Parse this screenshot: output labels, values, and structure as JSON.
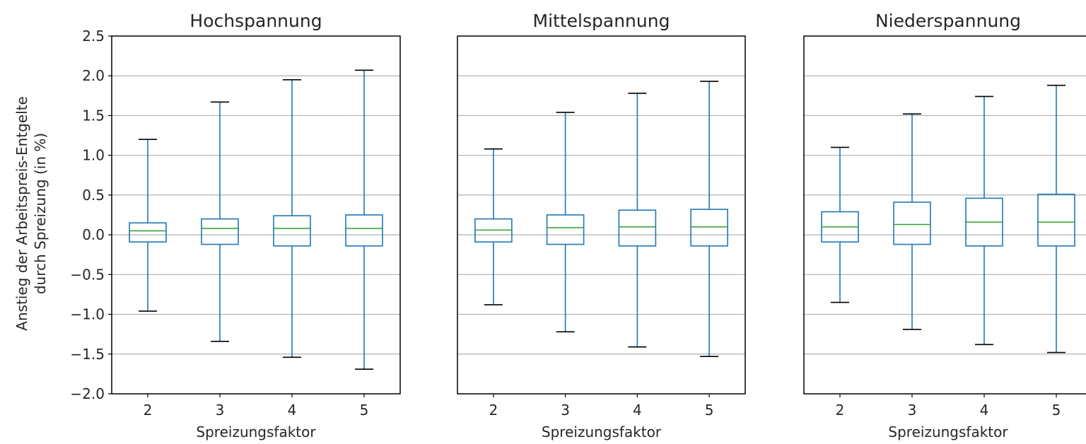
{
  "chart_data": {
    "type": "boxplot",
    "ylabel_lines": [
      "Anstieg der Arbeitspreis-Entgelte",
      "durch Spreizung (in %)"
    ],
    "ylim": [
      -2.0,
      2.5
    ],
    "yticks": [
      "2.5",
      "2.0",
      "1.5",
      "1.0",
      "0.5",
      "0.0",
      "−0.5",
      "−1.0",
      "−1.5",
      "−2.0"
    ],
    "ytick_values": [
      2.5,
      2.0,
      1.5,
      1.0,
      0.5,
      0.0,
      -0.5,
      -1.0,
      -1.5,
      -2.0
    ],
    "grid": "y",
    "colors": {
      "box": "#1f77b4",
      "median": "#2ca02c",
      "cap": "#000000",
      "grid": "#b0b0b0"
    },
    "panels": [
      {
        "title": "Hochspannung",
        "xlabel": "Spreizungsfaktor",
        "categories": [
          "2",
          "3",
          "4",
          "5"
        ],
        "boxes": [
          {
            "whislo": -0.96,
            "q1": -0.09,
            "med": 0.05,
            "q3": 0.15,
            "whishi": 1.2
          },
          {
            "whislo": -1.34,
            "q1": -0.12,
            "med": 0.08,
            "q3": 0.2,
            "whishi": 1.67
          },
          {
            "whislo": -1.54,
            "q1": -0.14,
            "med": 0.08,
            "q3": 0.24,
            "whishi": 1.95
          },
          {
            "whislo": -1.69,
            "q1": -0.14,
            "med": 0.08,
            "q3": 0.25,
            "whishi": 2.07
          }
        ]
      },
      {
        "title": "Mittelspannung",
        "xlabel": "Spreizungsfaktor",
        "categories": [
          "2",
          "3",
          "4",
          "5"
        ],
        "boxes": [
          {
            "whislo": -0.88,
            "q1": -0.09,
            "med": 0.06,
            "q3": 0.2,
            "whishi": 1.08
          },
          {
            "whislo": -1.22,
            "q1": -0.12,
            "med": 0.09,
            "q3": 0.25,
            "whishi": 1.54
          },
          {
            "whislo": -1.41,
            "q1": -0.14,
            "med": 0.1,
            "q3": 0.31,
            "whishi": 1.78
          },
          {
            "whislo": -1.53,
            "q1": -0.14,
            "med": 0.1,
            "q3": 0.32,
            "whishi": 1.93
          }
        ]
      },
      {
        "title": "Niederspannung",
        "xlabel": "Spreizungsfaktor",
        "categories": [
          "2",
          "3",
          "4",
          "5"
        ],
        "boxes": [
          {
            "whislo": -0.85,
            "q1": -0.09,
            "med": 0.1,
            "q3": 0.29,
            "whishi": 1.1
          },
          {
            "whislo": -1.19,
            "q1": -0.12,
            "med": 0.13,
            "q3": 0.41,
            "whishi": 1.52
          },
          {
            "whislo": -1.38,
            "q1": -0.14,
            "med": 0.16,
            "q3": 0.46,
            "whishi": 1.74
          },
          {
            "whislo": -1.48,
            "q1": -0.14,
            "med": 0.16,
            "q3": 0.51,
            "whishi": 1.88
          }
        ]
      }
    ]
  }
}
